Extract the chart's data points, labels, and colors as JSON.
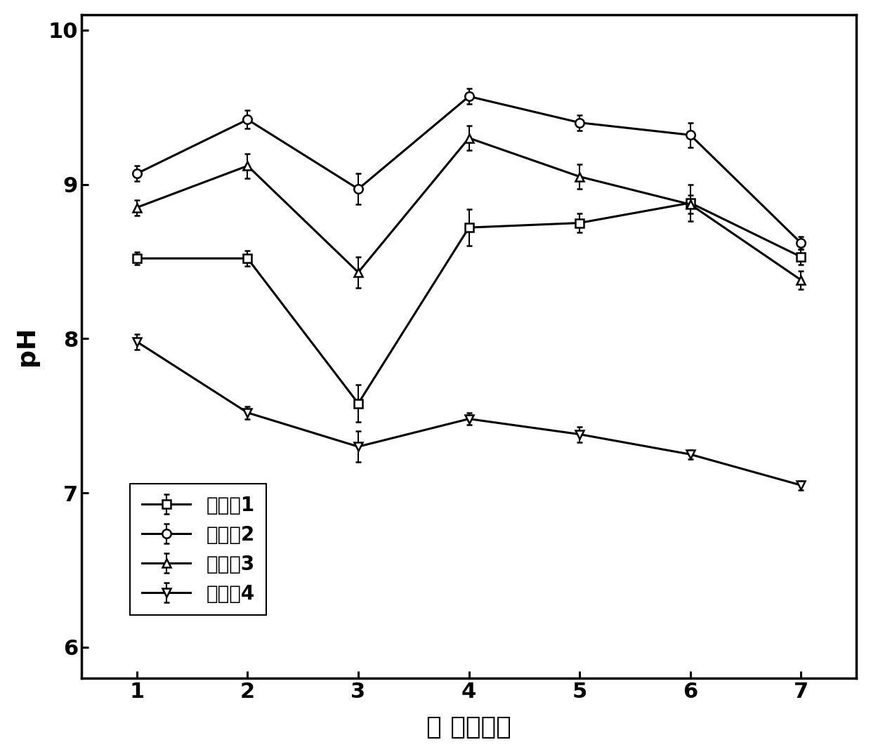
{
  "x": [
    1,
    2,
    3,
    4,
    5,
    6,
    7
  ],
  "series": [
    {
      "label": "实施例1",
      "y": [
        8.52,
        8.52,
        7.58,
        8.72,
        8.75,
        8.88,
        8.53
      ],
      "yerr": [
        0.04,
        0.05,
        0.12,
        0.12,
        0.06,
        0.12,
        0.05
      ],
      "marker": "s",
      "markersize": 9
    },
    {
      "label": "实施例2",
      "y": [
        9.07,
        9.42,
        8.97,
        9.57,
        9.4,
        9.32,
        8.62
      ],
      "yerr": [
        0.05,
        0.06,
        0.1,
        0.05,
        0.05,
        0.08,
        0.04
      ],
      "marker": "o",
      "markersize": 9
    },
    {
      "label": "实施例3",
      "y": [
        8.85,
        9.12,
        8.43,
        9.3,
        9.05,
        8.87,
        8.38
      ],
      "yerr": [
        0.05,
        0.08,
        0.1,
        0.08,
        0.08,
        0.06,
        0.06
      ],
      "marker": "^",
      "markersize": 9
    },
    {
      "label": "实施例4",
      "y": [
        7.98,
        7.52,
        7.3,
        7.48,
        7.38,
        7.25,
        7.05
      ],
      "yerr": [
        0.05,
        0.04,
        0.1,
        0.04,
        0.05,
        0.03,
        0.03
      ],
      "marker": "v",
      "markersize": 9
    }
  ],
  "xlabel": "时 间（天）",
  "ylabel": "pH",
  "xlim": [
    0.5,
    7.5
  ],
  "ylim": [
    5.8,
    10.1
  ],
  "yticks": [
    6,
    7,
    8,
    9,
    10
  ],
  "xticks": [
    1,
    2,
    3,
    4,
    5,
    6,
    7
  ],
  "linewidth": 2.2,
  "color": "#000000",
  "legend_fontsize": 20,
  "axis_fontsize": 26,
  "tick_fontsize": 22,
  "marker_edge_width": 1.8,
  "marker_face_color": "white"
}
